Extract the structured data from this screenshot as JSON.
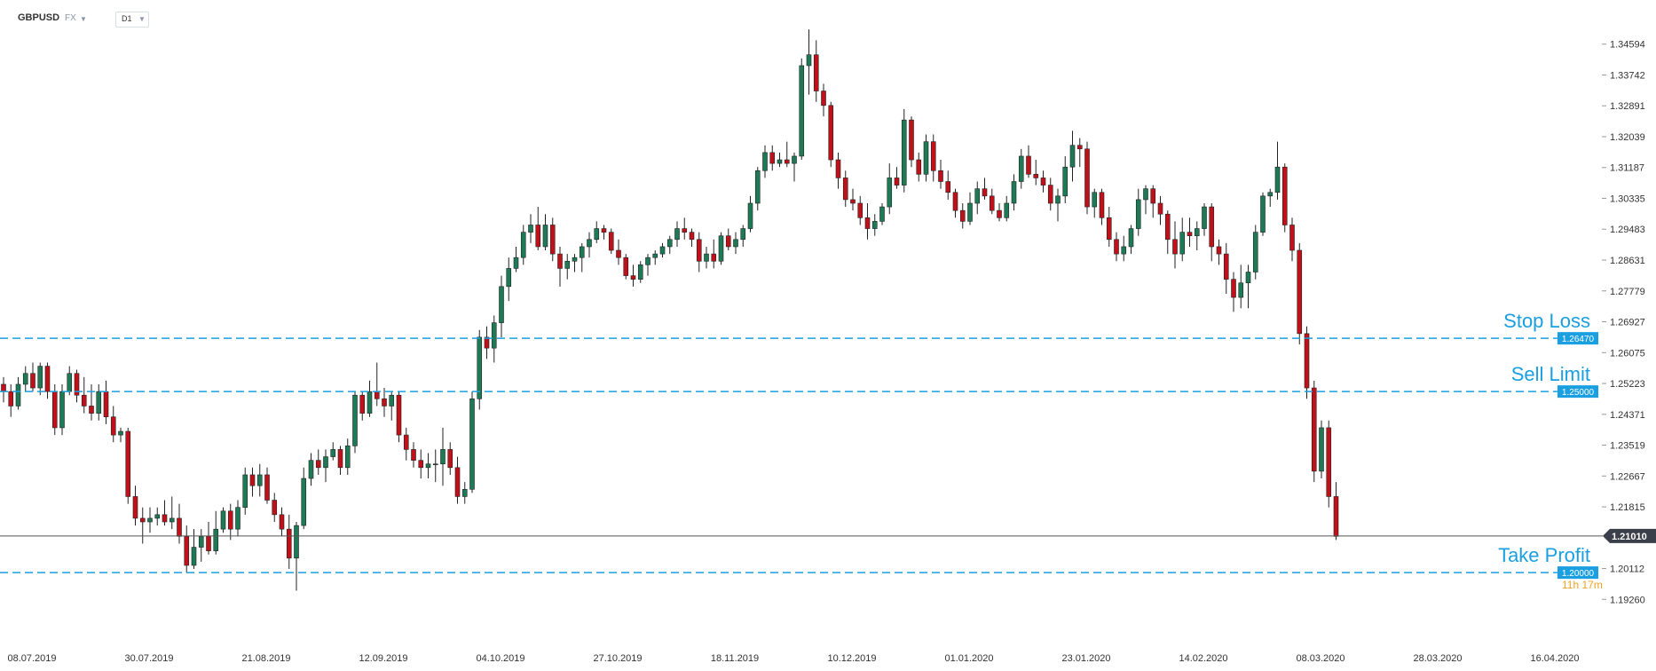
{
  "header": {
    "symbol": "GBPUSD",
    "market": "FX",
    "timeframe": "D1"
  },
  "colors": {
    "bull": "#1e7a56",
    "bear": "#c0111b",
    "level_line": "#1a9fe0",
    "current_line": "#555555",
    "current_badge": "#3a3f4a",
    "timer": "#f0a020"
  },
  "chart_data": {
    "type": "candlestick",
    "symbol": "GBPUSD",
    "timeframe": "D1",
    "ylim": [
      1.189,
      1.352
    ],
    "y_ticks": [
      "1.34594",
      "1.33742",
      "1.32891",
      "1.32039",
      "1.31187",
      "1.30335",
      "1.29483",
      "1.28631",
      "1.27779",
      "1.26927",
      "1.26075",
      "1.25223",
      "1.24371",
      "1.23519",
      "1.22667",
      "1.21815",
      "1.20112",
      "1.19260"
    ],
    "x_ticks": [
      "08.07.2019",
      "30.07.2019",
      "21.08.2019",
      "12.09.2019",
      "04.10.2019",
      "27.10.2019",
      "18.11.2019",
      "10.12.2019",
      "01.01.2020",
      "23.01.2020",
      "14.02.2020",
      "08.03.2020",
      "28.03.2020",
      "16.04.2020"
    ],
    "levels": [
      {
        "label": "Stop Loss",
        "price": 1.2647,
        "badge": "1.26470"
      },
      {
        "label": "Sell Limit",
        "price": 1.25,
        "badge": "1.25000"
      },
      {
        "label": "Take Profit",
        "price": 1.2,
        "badge": "1.20000"
      }
    ],
    "current_price": {
      "price": 1.2101,
      "badge": "1.21010"
    },
    "countdown": "11h 17m",
    "ohlc": [
      [
        1.252,
        1.254,
        1.247,
        1.25
      ],
      [
        1.25,
        1.252,
        1.243,
        1.246
      ],
      [
        1.246,
        1.254,
        1.245,
        1.252
      ],
      [
        1.252,
        1.257,
        1.25,
        1.255
      ],
      [
        1.255,
        1.258,
        1.25,
        1.251
      ],
      [
        1.251,
        1.258,
        1.249,
        1.257
      ],
      [
        1.257,
        1.258,
        1.248,
        1.25
      ],
      [
        1.25,
        1.252,
        1.238,
        1.24
      ],
      [
        1.24,
        1.252,
        1.238,
        1.25
      ],
      [
        1.25,
        1.257,
        1.249,
        1.255
      ],
      [
        1.255,
        1.256,
        1.247,
        1.249
      ],
      [
        1.249,
        1.254,
        1.244,
        1.246
      ],
      [
        1.246,
        1.252,
        1.242,
        1.244
      ],
      [
        1.244,
        1.252,
        1.242,
        1.25
      ],
      [
        1.25,
        1.253,
        1.241,
        1.243
      ],
      [
        1.243,
        1.246,
        1.236,
        1.238
      ],
      [
        1.238,
        1.24,
        1.236,
        1.239
      ],
      [
        1.239,
        1.24,
        1.219,
        1.221
      ],
      [
        1.221,
        1.224,
        1.213,
        1.215
      ],
      [
        1.215,
        1.218,
        1.208,
        1.214
      ],
      [
        1.214,
        1.218,
        1.211,
        1.215
      ],
      [
        1.215,
        1.218,
        1.213,
        1.216
      ],
      [
        1.216,
        1.22,
        1.213,
        1.214
      ],
      [
        1.214,
        1.221,
        1.212,
        1.215
      ],
      [
        1.215,
        1.219,
        1.208,
        1.21
      ],
      [
        1.21,
        1.213,
        1.2,
        1.202
      ],
      [
        1.202,
        1.212,
        1.201,
        1.207
      ],
      [
        1.207,
        1.212,
        1.203,
        1.21
      ],
      [
        1.21,
        1.214,
        1.205,
        1.206
      ],
      [
        1.206,
        1.217,
        1.205,
        1.212
      ],
      [
        1.212,
        1.218,
        1.211,
        1.217
      ],
      [
        1.217,
        1.219,
        1.209,
        1.212
      ],
      [
        1.212,
        1.22,
        1.21,
        1.218
      ],
      [
        1.218,
        1.229,
        1.216,
        1.227
      ],
      [
        1.227,
        1.229,
        1.221,
        1.224
      ],
      [
        1.224,
        1.23,
        1.221,
        1.227
      ],
      [
        1.227,
        1.229,
        1.219,
        1.22
      ],
      [
        1.22,
        1.222,
        1.214,
        1.216
      ],
      [
        1.216,
        1.218,
        1.21,
        1.212
      ],
      [
        1.212,
        1.216,
        1.201,
        1.204
      ],
      [
        1.204,
        1.214,
        1.195,
        1.213
      ],
      [
        1.213,
        1.229,
        1.212,
        1.226
      ],
      [
        1.226,
        1.233,
        1.224,
        1.231
      ],
      [
        1.231,
        1.234,
        1.227,
        1.229
      ],
      [
        1.229,
        1.234,
        1.225,
        1.232
      ],
      [
        1.232,
        1.236,
        1.231,
        1.234
      ],
      [
        1.234,
        1.235,
        1.227,
        1.229
      ],
      [
        1.229,
        1.237,
        1.227,
        1.235
      ],
      [
        1.235,
        1.25,
        1.233,
        1.249
      ],
      [
        1.249,
        1.25,
        1.242,
        1.244
      ],
      [
        1.244,
        1.253,
        1.243,
        1.25
      ],
      [
        1.25,
        1.258,
        1.246,
        1.248
      ],
      [
        1.248,
        1.251,
        1.243,
        1.246
      ],
      [
        1.246,
        1.25,
        1.242,
        1.249
      ],
      [
        1.249,
        1.25,
        1.236,
        1.238
      ],
      [
        1.238,
        1.24,
        1.231,
        1.234
      ],
      [
        1.234,
        1.236,
        1.229,
        1.231
      ],
      [
        1.231,
        1.234,
        1.226,
        1.229
      ],
      [
        1.229,
        1.233,
        1.226,
        1.23
      ],
      [
        1.23,
        1.234,
        1.225,
        1.23
      ],
      [
        1.23,
        1.24,
        1.224,
        1.234
      ],
      [
        1.234,
        1.236,
        1.227,
        1.229
      ],
      [
        1.229,
        1.232,
        1.219,
        1.221
      ],
      [
        1.221,
        1.225,
        1.219,
        1.223
      ],
      [
        1.223,
        1.25,
        1.222,
        1.248
      ],
      [
        1.248,
        1.267,
        1.245,
        1.265
      ],
      [
        1.265,
        1.268,
        1.259,
        1.262
      ],
      [
        1.262,
        1.271,
        1.258,
        1.269
      ],
      [
        1.269,
        1.282,
        1.265,
        1.279
      ],
      [
        1.279,
        1.287,
        1.275,
        1.284
      ],
      [
        1.284,
        1.29,
        1.283,
        1.287
      ],
      [
        1.287,
        1.296,
        1.285,
        1.294
      ],
      [
        1.294,
        1.299,
        1.291,
        1.296
      ],
      [
        1.296,
        1.301,
        1.289,
        1.29
      ],
      [
        1.29,
        1.299,
        1.289,
        1.296
      ],
      [
        1.296,
        1.298,
        1.286,
        1.288
      ],
      [
        1.288,
        1.29,
        1.279,
        1.284
      ],
      [
        1.284,
        1.288,
        1.281,
        1.286
      ],
      [
        1.286,
        1.288,
        1.283,
        1.287
      ],
      [
        1.287,
        1.291,
        1.283,
        1.29
      ],
      [
        1.29,
        1.294,
        1.287,
        1.292
      ],
      [
        1.292,
        1.297,
        1.291,
        1.295
      ],
      [
        1.295,
        1.296,
        1.292,
        1.294
      ],
      [
        1.294,
        1.295,
        1.288,
        1.289
      ],
      [
        1.289,
        1.292,
        1.285,
        1.287
      ],
      [
        1.287,
        1.288,
        1.281,
        1.282
      ],
      [
        1.282,
        1.285,
        1.279,
        1.281
      ],
      [
        1.281,
        1.286,
        1.28,
        1.285
      ],
      [
        1.285,
        1.288,
        1.282,
        1.287
      ],
      [
        1.287,
        1.289,
        1.285,
        1.288
      ],
      [
        1.288,
        1.291,
        1.287,
        1.29
      ],
      [
        1.29,
        1.293,
        1.288,
        1.292
      ],
      [
        1.292,
        1.297,
        1.29,
        1.295
      ],
      [
        1.295,
        1.298,
        1.292,
        1.294
      ],
      [
        1.294,
        1.295,
        1.29,
        1.292
      ],
      [
        1.292,
        1.294,
        1.283,
        1.286
      ],
      [
        1.286,
        1.29,
        1.284,
        1.288
      ],
      [
        1.288,
        1.292,
        1.284,
        1.286
      ],
      [
        1.286,
        1.294,
        1.285,
        1.293
      ],
      [
        1.293,
        1.295,
        1.289,
        1.29
      ],
      [
        1.29,
        1.294,
        1.288,
        1.292
      ],
      [
        1.292,
        1.296,
        1.29,
        1.295
      ],
      [
        1.295,
        1.304,
        1.294,
        1.302
      ],
      [
        1.302,
        1.312,
        1.3,
        1.311
      ],
      [
        1.311,
        1.318,
        1.309,
        1.316
      ],
      [
        1.316,
        1.318,
        1.311,
        1.313
      ],
      [
        1.313,
        1.316,
        1.312,
        1.314
      ],
      [
        1.314,
        1.319,
        1.312,
        1.313
      ],
      [
        1.313,
        1.316,
        1.308,
        1.315
      ],
      [
        1.315,
        1.342,
        1.314,
        1.34
      ],
      [
        1.34,
        1.35,
        1.332,
        1.343
      ],
      [
        1.343,
        1.347,
        1.33,
        1.333
      ],
      [
        1.333,
        1.335,
        1.326,
        1.329
      ],
      [
        1.329,
        1.33,
        1.312,
        1.314
      ],
      [
        1.314,
        1.316,
        1.306,
        1.309
      ],
      [
        1.309,
        1.311,
        1.301,
        1.303
      ],
      [
        1.303,
        1.306,
        1.3,
        1.302
      ],
      [
        1.302,
        1.304,
        1.296,
        1.298
      ],
      [
        1.298,
        1.302,
        1.292,
        1.295
      ],
      [
        1.295,
        1.299,
        1.293,
        1.297
      ],
      [
        1.297,
        1.302,
        1.296,
        1.301
      ],
      [
        1.301,
        1.313,
        1.299,
        1.309
      ],
      [
        1.309,
        1.312,
        1.306,
        1.307
      ],
      [
        1.307,
        1.328,
        1.305,
        1.325
      ],
      [
        1.325,
        1.326,
        1.312,
        1.314
      ],
      [
        1.314,
        1.316,
        1.308,
        1.31
      ],
      [
        1.31,
        1.321,
        1.308,
        1.319
      ],
      [
        1.319,
        1.321,
        1.308,
        1.311
      ],
      [
        1.311,
        1.314,
        1.306,
        1.308
      ],
      [
        1.308,
        1.311,
        1.303,
        1.305
      ],
      [
        1.305,
        1.306,
        1.298,
        1.3
      ],
      [
        1.3,
        1.302,
        1.295,
        1.297
      ],
      [
        1.297,
        1.305,
        1.296,
        1.302
      ],
      [
        1.302,
        1.308,
        1.299,
        1.306
      ],
      [
        1.306,
        1.309,
        1.303,
        1.304
      ],
      [
        1.304,
        1.306,
        1.299,
        1.3
      ],
      [
        1.3,
        1.302,
        1.297,
        1.298
      ],
      [
        1.298,
        1.304,
        1.297,
        1.302
      ],
      [
        1.302,
        1.31,
        1.3,
        1.308
      ],
      [
        1.308,
        1.317,
        1.306,
        1.315
      ],
      [
        1.315,
        1.318,
        1.309,
        1.31
      ],
      [
        1.31,
        1.314,
        1.307,
        1.309
      ],
      [
        1.309,
        1.311,
        1.305,
        1.307
      ],
      [
        1.307,
        1.309,
        1.3,
        1.302
      ],
      [
        1.302,
        1.306,
        1.297,
        1.304
      ],
      [
        1.304,
        1.315,
        1.302,
        1.312
      ],
      [
        1.312,
        1.322,
        1.308,
        1.318
      ],
      [
        1.318,
        1.32,
        1.312,
        1.317
      ],
      [
        1.317,
        1.319,
        1.299,
        1.301
      ],
      [
        1.301,
        1.306,
        1.298,
        1.305
      ],
      [
        1.305,
        1.306,
        1.296,
        1.298
      ],
      [
        1.298,
        1.301,
        1.29,
        1.292
      ],
      [
        1.292,
        1.294,
        1.286,
        1.288
      ],
      [
        1.288,
        1.293,
        1.286,
        1.29
      ],
      [
        1.29,
        1.296,
        1.288,
        1.295
      ],
      [
        1.295,
        1.306,
        1.293,
        1.303
      ],
      [
        1.303,
        1.307,
        1.299,
        1.306
      ],
      [
        1.306,
        1.307,
        1.298,
        1.302
      ],
      [
        1.302,
        1.304,
        1.296,
        1.299
      ],
      [
        1.299,
        1.3,
        1.288,
        1.292
      ],
      [
        1.292,
        1.297,
        1.284,
        1.288
      ],
      [
        1.288,
        1.298,
        1.286,
        1.294
      ],
      [
        1.294,
        1.298,
        1.29,
        1.293
      ],
      [
        1.293,
        1.297,
        1.289,
        1.295
      ],
      [
        1.295,
        1.302,
        1.293,
        1.301
      ],
      [
        1.301,
        1.302,
        1.286,
        1.29
      ],
      [
        1.29,
        1.292,
        1.285,
        1.288
      ],
      [
        1.288,
        1.291,
        1.277,
        1.281
      ],
      [
        1.281,
        1.283,
        1.272,
        1.276
      ],
      [
        1.276,
        1.285,
        1.273,
        1.28
      ],
      [
        1.28,
        1.285,
        1.273,
        1.283
      ],
      [
        1.283,
        1.296,
        1.281,
        1.294
      ],
      [
        1.294,
        1.305,
        1.293,
        1.304
      ],
      [
        1.304,
        1.306,
        1.301,
        1.305
      ],
      [
        1.305,
        1.319,
        1.303,
        1.312
      ],
      [
        1.312,
        1.313,
        1.294,
        1.296
      ],
      [
        1.296,
        1.298,
        1.286,
        1.289
      ],
      [
        1.289,
        1.291,
        1.263,
        1.266
      ],
      [
        1.266,
        1.268,
        1.248,
        1.251
      ],
      [
        1.251,
        1.253,
        1.225,
        1.228
      ],
      [
        1.228,
        1.242,
        1.226,
        1.24
      ],
      [
        1.24,
        1.242,
        1.218,
        1.221
      ],
      [
        1.221,
        1.225,
        1.209,
        1.21
      ]
    ]
  }
}
